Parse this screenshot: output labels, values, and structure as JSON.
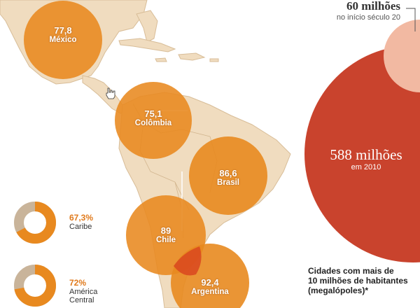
{
  "bubbles": [
    {
      "value": "77,8",
      "name": "México"
    },
    {
      "value": "75,1",
      "name": "Colômbia"
    },
    {
      "value": "86,6",
      "name": "Brasil"
    },
    {
      "value": "89",
      "name": "Chile"
    },
    {
      "value": "92,4",
      "name": "Argentina"
    }
  ],
  "donuts": [
    {
      "pct": "67,3%",
      "region": "Caribe",
      "fraction": 0.673
    },
    {
      "pct": "72%",
      "region": "América Central",
      "region_lines": [
        "América",
        "Central"
      ],
      "fraction": 0.72
    }
  ],
  "population": {
    "early": {
      "value": "60 milhões",
      "note": "no início século 20"
    },
    "now": {
      "value": "588 milhões",
      "note": "em 2010"
    }
  },
  "footnote": {
    "lines": [
      "Cidades com mais de",
      "10 milhões de habitantes",
      "(megalópoles)*"
    ]
  },
  "colors": {
    "land": "#f0dcbf",
    "sea": "#ffffff",
    "bubble": "#e8891f",
    "bubble_text": "#ffffff",
    "big_circle": "#c9432d",
    "small_circle": "#f2b9a2",
    "donut_fill": "#e8891f",
    "donut_rest": "#c9b49a",
    "pct_text": "#e07a1c"
  }
}
